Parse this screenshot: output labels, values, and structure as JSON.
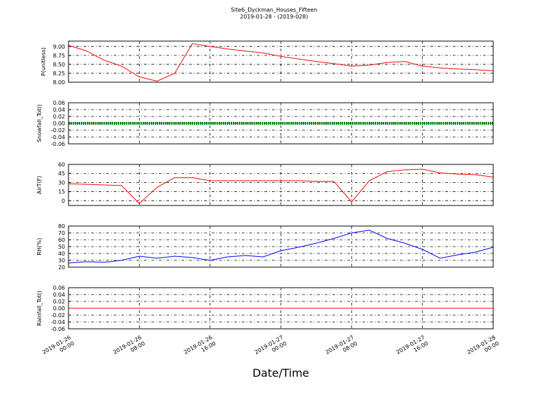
{
  "figure": {
    "title": "Site6_Dyckman_Houses_Fifteen",
    "subtitle": "2019-01-28 - (2019-028)",
    "xlabel": "Date/Time",
    "xlim": [
      "2019-01-26 00:00",
      "2019-01-28 00:00"
    ],
    "xticks": [
      "2019-01-26 00:00",
      "2019-01-26 08:00",
      "2019-01-26 16:00",
      "2019-01-27 00:00",
      "2019-01-27 08:00",
      "2019-01-27 16:00",
      "2019-01-28 00:00"
    ],
    "grid": true
  },
  "chart_data": [
    {
      "type": "line",
      "ylabel": "P(unitless)",
      "x": [
        "2019-01-26 00:00",
        "2019-01-26 02:00",
        "2019-01-26 04:00",
        "2019-01-26 06:00",
        "2019-01-26 08:00",
        "2019-01-26 10:00",
        "2019-01-26 12:00",
        "2019-01-26 14:00",
        "2019-01-26 16:00",
        "2019-01-26 18:00",
        "2019-01-26 20:00",
        "2019-01-26 22:00",
        "2019-01-27 00:00",
        "2019-01-27 02:00",
        "2019-01-27 04:00",
        "2019-01-27 06:00",
        "2019-01-27 08:00",
        "2019-01-27 10:00",
        "2019-01-27 12:00",
        "2019-01-27 14:00",
        "2019-01-27 16:00",
        "2019-01-27 18:00",
        "2019-01-27 20:00",
        "2019-01-27 22:00",
        "2019-01-28 00:00"
      ],
      "series": [
        {
          "name": "P",
          "color": "#ff0000",
          "values": [
            9.03,
            8.88,
            8.62,
            8.45,
            8.15,
            8.03,
            8.25,
            9.08,
            9.0,
            8.93,
            8.87,
            8.82,
            8.72,
            8.65,
            8.58,
            8.52,
            8.45,
            8.48,
            8.55,
            8.58,
            8.45,
            8.4,
            8.37,
            8.35,
            8.32
          ]
        }
      ],
      "ylim": [
        8.0,
        9.15
      ],
      "yticks": [
        {
          "value": 8.0,
          "label": "8.00"
        },
        {
          "value": 8.25,
          "label": "8.25"
        },
        {
          "value": 8.5,
          "label": "8.50"
        },
        {
          "value": 8.75,
          "label": "8.75"
        },
        {
          "value": 9.0,
          "label": "9.00"
        }
      ]
    },
    {
      "type": "line",
      "ylabel": "Snowfall_Tot()",
      "x": [
        "2019-01-26 00:00",
        "2019-01-26 02:00",
        "2019-01-26 04:00",
        "2019-01-26 06:00",
        "2019-01-26 08:00",
        "2019-01-26 10:00",
        "2019-01-26 12:00",
        "2019-01-26 14:00",
        "2019-01-26 16:00",
        "2019-01-26 18:00",
        "2019-01-26 20:00",
        "2019-01-26 22:00",
        "2019-01-27 00:00",
        "2019-01-27 02:00",
        "2019-01-27 04:00",
        "2019-01-27 06:00",
        "2019-01-27 08:00",
        "2019-01-27 10:00",
        "2019-01-27 12:00",
        "2019-01-27 14:00",
        "2019-01-27 16:00",
        "2019-01-27 18:00",
        "2019-01-27 20:00",
        "2019-01-27 22:00",
        "2019-01-28 00:00"
      ],
      "series": [
        {
          "name": "Snowfall_Tot",
          "color": "#008000",
          "values": [
            0,
            0,
            0,
            0,
            0,
            0,
            0,
            0,
            0,
            0,
            0,
            0,
            0,
            0,
            0,
            0,
            0,
            0,
            0,
            0,
            0,
            0,
            0,
            0,
            0
          ]
        }
      ],
      "ylim": [
        -0.06,
        0.06
      ],
      "yticks": [
        {
          "value": -0.06,
          "label": "-0.06"
        },
        {
          "value": -0.04,
          "label": "-0.04"
        },
        {
          "value": -0.02,
          "label": "-0.02"
        },
        {
          "value": 0,
          "label": "0.00"
        },
        {
          "value": 0.02,
          "label": "0.02"
        },
        {
          "value": 0.04,
          "label": "0.04"
        },
        {
          "value": 0.06,
          "label": "0.06"
        }
      ]
    },
    {
      "type": "line",
      "ylabel": "AirT(F)",
      "x": [
        "2019-01-26 00:00",
        "2019-01-26 02:00",
        "2019-01-26 04:00",
        "2019-01-26 06:00",
        "2019-01-26 08:00",
        "2019-01-26 10:00",
        "2019-01-26 12:00",
        "2019-01-26 14:00",
        "2019-01-26 16:00",
        "2019-01-26 18:00",
        "2019-01-26 20:00",
        "2019-01-26 22:00",
        "2019-01-27 00:00",
        "2019-01-27 02:00",
        "2019-01-27 04:00",
        "2019-01-27 06:00",
        "2019-01-27 08:00",
        "2019-01-27 10:00",
        "2019-01-27 12:00",
        "2019-01-27 14:00",
        "2019-01-27 16:00",
        "2019-01-27 18:00",
        "2019-01-27 20:00",
        "2019-01-27 22:00",
        "2019-01-28 00:00"
      ],
      "series": [
        {
          "name": "AirT",
          "color": "#ff0000",
          "values": [
            28,
            27,
            26,
            25,
            -5,
            22,
            38,
            38,
            33,
            33,
            33,
            33,
            33,
            33,
            32,
            32,
            -2,
            33,
            48,
            51,
            52,
            46,
            44,
            43,
            39
          ]
        }
      ],
      "ylim": [
        -8,
        60
      ],
      "yticks": [
        0,
        15,
        30,
        45,
        60
      ]
    },
    {
      "type": "line",
      "ylabel": "RH(%)",
      "x": [
        "2019-01-26 00:00",
        "2019-01-26 02:00",
        "2019-01-26 04:00",
        "2019-01-26 06:00",
        "2019-01-26 08:00",
        "2019-01-26 10:00",
        "2019-01-26 12:00",
        "2019-01-26 14:00",
        "2019-01-26 16:00",
        "2019-01-26 18:00",
        "2019-01-26 20:00",
        "2019-01-26 22:00",
        "2019-01-27 00:00",
        "2019-01-27 02:00",
        "2019-01-27 04:00",
        "2019-01-27 06:00",
        "2019-01-27 08:00",
        "2019-01-27 10:00",
        "2019-01-27 12:00",
        "2019-01-27 14:00",
        "2019-01-27 16:00",
        "2019-01-27 18:00",
        "2019-01-27 20:00",
        "2019-01-27 22:00",
        "2019-01-28 00:00"
      ],
      "series": [
        {
          "name": "RH",
          "color": "#0000ff",
          "values": [
            26,
            28,
            27,
            30,
            36,
            33,
            36,
            34,
            30,
            35,
            37,
            35,
            44,
            49,
            55,
            62,
            70,
            74,
            62,
            55,
            46,
            33,
            38,
            42,
            49
          ]
        }
      ],
      "ylim": [
        20,
        80
      ],
      "yticks": [
        20,
        30,
        40,
        50,
        60,
        70,
        80
      ]
    },
    {
      "type": "line",
      "ylabel": "Rainfall_Tot()",
      "x": [
        "2019-01-26 00:00",
        "2019-01-26 02:00",
        "2019-01-26 04:00",
        "2019-01-26 06:00",
        "2019-01-26 08:00",
        "2019-01-26 10:00",
        "2019-01-26 12:00",
        "2019-01-26 14:00",
        "2019-01-26 16:00",
        "2019-01-26 18:00",
        "2019-01-26 20:00",
        "2019-01-26 22:00",
        "2019-01-27 00:00",
        "2019-01-27 02:00",
        "2019-01-27 04:00",
        "2019-01-27 06:00",
        "2019-01-27 08:00",
        "2019-01-27 10:00",
        "2019-01-27 12:00",
        "2019-01-27 14:00",
        "2019-01-27 16:00",
        "2019-01-27 18:00",
        "2019-01-27 20:00",
        "2019-01-27 22:00",
        "2019-01-28 00:00"
      ],
      "series": [
        {
          "name": "Rainfall_Tot",
          "color": "#ff0000",
          "values": [
            0,
            0,
            0,
            0,
            0,
            0,
            0,
            0,
            0,
            0,
            0,
            0,
            0,
            0,
            0,
            0,
            0,
            0,
            0,
            0,
            0,
            0,
            0,
            0,
            0
          ]
        }
      ],
      "ylim": [
        -0.06,
        0.06
      ],
      "yticks": [
        {
          "value": -0.06,
          "label": "-0.06"
        },
        {
          "value": -0.04,
          "label": "-0.04"
        },
        {
          "value": -0.02,
          "label": "-0.02"
        },
        {
          "value": 0,
          "label": "0.00"
        },
        {
          "value": 0.02,
          "label": "0.02"
        },
        {
          "value": 0.04,
          "label": "0.04"
        },
        {
          "value": 0.06,
          "label": "0.06"
        }
      ]
    }
  ]
}
